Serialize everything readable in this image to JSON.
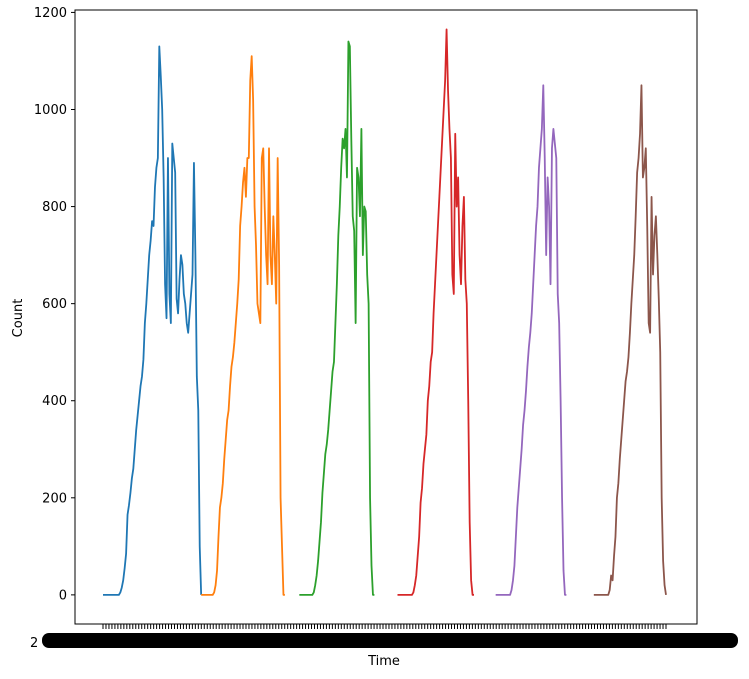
{
  "chart_data": {
    "type": "line",
    "title": "",
    "xlabel": "Time",
    "ylabel": "Count",
    "ylim": [
      -60,
      1205
    ],
    "yticks": [
      0,
      200,
      400,
      600,
      800,
      1000,
      1200
    ],
    "x_tick_labels_legible": false,
    "x_tick_label_fragment": "2",
    "x_tick_count_approx": 190,
    "grid": false,
    "legend": "none",
    "series_points_per_cycle": 69,
    "series": [
      {
        "color": "#1f77b4",
        "values": [
          0,
          0,
          0,
          0,
          0,
          0,
          0,
          0,
          0,
          0,
          0,
          0,
          5,
          15,
          30,
          55,
          85,
          165,
          185,
          210,
          240,
          260,
          300,
          340,
          370,
          400,
          430,
          450,
          485,
          560,
          600,
          650,
          700,
          730,
          770,
          760,
          840,
          880,
          900,
          1130,
          1070,
          1000,
          860,
          640,
          570,
          900,
          620,
          560,
          930,
          900,
          870,
          610,
          580,
          650,
          700,
          680,
          620,
          600,
          560,
          540,
          580,
          620,
          660,
          890,
          700,
          450,
          380,
          100,
          0
        ],
        "start_index": 0
      },
      {
        "color": "#ff7f0e",
        "values": [
          0,
          0,
          0,
          0,
          0,
          0,
          0,
          0,
          0,
          5,
          20,
          50,
          120,
          180,
          200,
          230,
          280,
          320,
          360,
          380,
          430,
          470,
          490,
          520,
          560,
          600,
          650,
          760,
          800,
          850,
          880,
          820,
          900,
          900,
          1060,
          1110,
          1020,
          800,
          720,
          600,
          580,
          560,
          900,
          920,
          800,
          700,
          640,
          920,
          700,
          640,
          780,
          700,
          600,
          900,
          680,
          200,
          100,
          0,
          0
        ],
        "start_index": 68
      },
      {
        "color": "#2ca02c",
        "values": [
          0,
          0,
          0,
          0,
          0,
          0,
          0,
          0,
          0,
          0,
          5,
          20,
          40,
          70,
          110,
          150,
          210,
          250,
          290,
          310,
          340,
          380,
          420,
          460,
          480,
          560,
          640,
          740,
          800,
          880,
          940,
          920,
          960,
          860,
          1140,
          1130,
          940,
          780,
          750,
          560,
          880,
          860,
          780,
          960,
          700,
          800,
          790,
          660,
          600,
          200,
          60,
          0,
          0
        ],
        "start_index": 136
      },
      {
        "color": "#d62728",
        "values": [
          0,
          0,
          0,
          0,
          0,
          0,
          0,
          0,
          0,
          0,
          0,
          5,
          20,
          40,
          80,
          120,
          190,
          220,
          270,
          300,
          330,
          400,
          430,
          480,
          500,
          580,
          640,
          700,
          760,
          820,
          880,
          940,
          1000,
          1060,
          1165,
          1040,
          960,
          900,
          660,
          620,
          950,
          800,
          860,
          700,
          640,
          760,
          820,
          650,
          600,
          400,
          150,
          30,
          0,
          0
        ],
        "start_index": 204
      },
      {
        "color": "#9467bd",
        "values": [
          0,
          0,
          0,
          0,
          0,
          0,
          0,
          0,
          0,
          0,
          0,
          10,
          30,
          60,
          120,
          180,
          220,
          260,
          300,
          350,
          380,
          420,
          470,
          510,
          540,
          580,
          640,
          700,
          760,
          800,
          880,
          920,
          960,
          1050,
          900,
          700,
          860,
          800,
          640,
          920,
          960,
          930,
          900,
          620,
          560,
          400,
          200,
          50,
          0,
          0
        ],
        "start_index": 272
      },
      {
        "color": "#8c564b",
        "values": [
          0,
          0,
          0,
          0,
          0,
          0,
          0,
          0,
          0,
          0,
          0,
          10,
          40,
          30,
          80,
          120,
          200,
          230,
          280,
          320,
          360,
          400,
          440,
          460,
          490,
          540,
          600,
          650,
          700,
          780,
          870,
          900,
          950,
          1050,
          860,
          880,
          920,
          760,
          560,
          540,
          820,
          660,
          740,
          780,
          700,
          610,
          500,
          200,
          70,
          20,
          0
        ],
        "start_index": 340
      }
    ]
  }
}
